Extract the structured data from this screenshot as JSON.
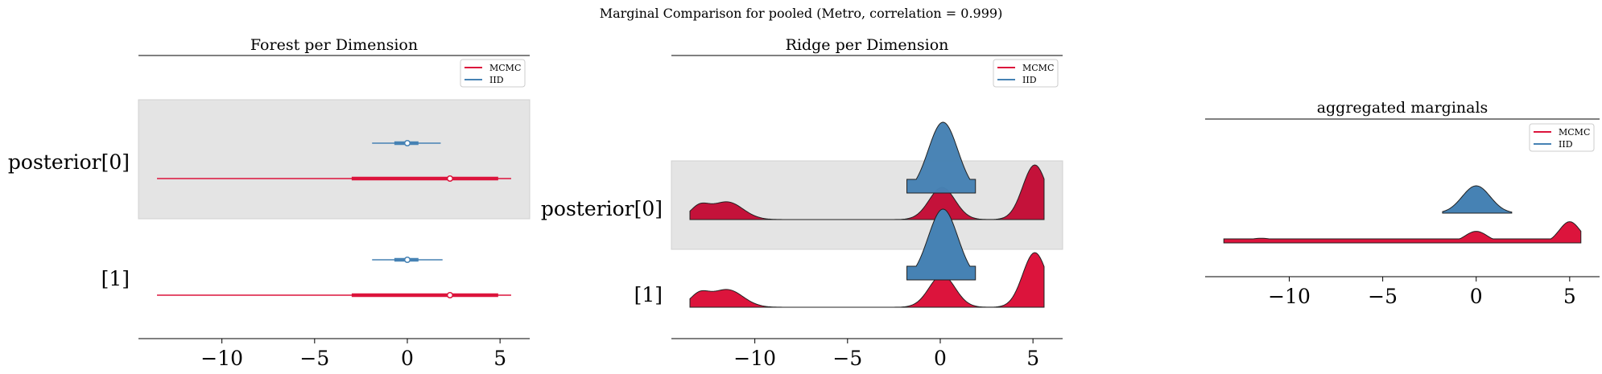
{
  "figure": {
    "suptitle": "Marginal Comparison for pooled (Metro, correlation = 0.999)"
  },
  "colors": {
    "mcmc": "#dc143c",
    "iid": "#4682b4",
    "band": "#e4e4e4"
  },
  "legend": {
    "entries": [
      "MCMC",
      "IID"
    ]
  },
  "chart_data": [
    {
      "type": "forest",
      "title": "Forest per Dimension",
      "ylabels": [
        "posterior[0]",
        "[1]"
      ],
      "xticks": [
        "−10",
        "−5",
        "0",
        "5"
      ],
      "xtick_values": [
        -10,
        -5,
        0,
        5
      ],
      "xlim": [
        -14.5,
        6.6
      ],
      "legend_position": "upper right",
      "series": [
        {
          "name": "MCMC",
          "rows": [
            {
              "hdi94": [
                -13.5,
                5.6
              ],
              "iqr": [
                -3.0,
                4.9
              ],
              "point": 2.3
            },
            {
              "hdi94": [
                -13.5,
                5.6
              ],
              "iqr": [
                -3.0,
                4.9
              ],
              "point": 2.3
            }
          ]
        },
        {
          "name": "IID",
          "rows": [
            {
              "hdi94": [
                -1.9,
                1.8
              ],
              "iqr": [
                -0.7,
                0.6
              ],
              "point": 0.0
            },
            {
              "hdi94": [
                -1.9,
                1.9
              ],
              "iqr": [
                -0.7,
                0.6
              ],
              "point": 0.0
            }
          ]
        }
      ]
    },
    {
      "type": "ridgeplot",
      "title": "Ridge per Dimension",
      "ylabels": [
        "posterior[0]",
        "[1]"
      ],
      "xticks": [
        "−10",
        "−5",
        "0",
        "5"
      ],
      "xtick_values": [
        -10,
        -5,
        0,
        5
      ],
      "xlim": [
        -14.5,
        6.6
      ],
      "legend_position": "upper right",
      "series": [
        {
          "name": "MCMC",
          "support": [
            -13.5,
            5.6
          ]
        },
        {
          "name": "IID",
          "support": [
            -1.8,
            1.9
          ]
        }
      ]
    },
    {
      "type": "density",
      "title": "aggregated marginals",
      "xticks": [
        "−10",
        "−5",
        "0",
        "5"
      ],
      "xtick_values": [
        -10,
        -5,
        0,
        5
      ],
      "xlim": [
        -14.5,
        6.6
      ],
      "legend_position": "upper right",
      "series": [
        {
          "name": "MCMC",
          "support": [
            -13.5,
            5.6
          ],
          "modes": [
            {
              "center": -11.5,
              "height": 0.12
            },
            {
              "center": 0.0,
              "height": 0.3
            },
            {
              "center": 5.0,
              "height": 0.55
            }
          ]
        },
        {
          "name": "IID",
          "support": [
            -1.8,
            1.9
          ],
          "modes": [
            {
              "center": 0.0,
              "height": 1.0
            }
          ]
        }
      ]
    }
  ]
}
